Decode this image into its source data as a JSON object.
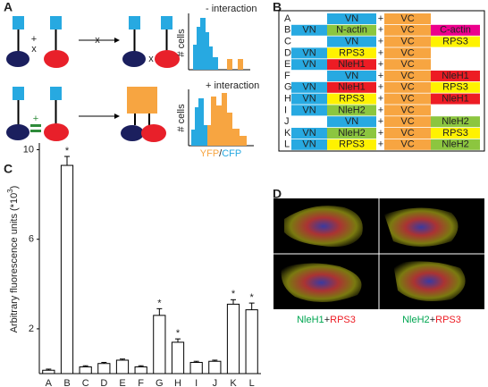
{
  "figure": {
    "panels": [
      "A",
      "B",
      "C",
      "D"
    ],
    "panel_a": {
      "minus_label": "- interaction",
      "plus_label": "+ interaction",
      "y_label": "# cells",
      "plus_sign": "+",
      "cross": "x",
      "x_label_yfp": "YFP",
      "x_label_sep": "/",
      "x_label_cfp": "CFP"
    },
    "panel_b": {
      "plus": "+",
      "colors": {
        "VN": "#27a9e1",
        "VC": "#f7a541",
        "N-actin": "#8cc63f",
        "C-actin": "#ec008c",
        "RPS3": "#fff200",
        "NleH1": "#ed1c24",
        "NleH2": "#8cc63f"
      },
      "rows": [
        {
          "label": "A",
          "cells": [
            null,
            "VN",
            "VC",
            null
          ]
        },
        {
          "label": "B",
          "cells": [
            "VN",
            "N-actin",
            "VC",
            "C-actin"
          ]
        },
        {
          "label": "C",
          "cells": [
            null,
            "VN",
            "VC",
            "RPS3"
          ]
        },
        {
          "label": "D",
          "cells": [
            "VN",
            "RPS3",
            "VC",
            null
          ]
        },
        {
          "label": "E",
          "cells": [
            "VN",
            "NleH1",
            "VC",
            null
          ]
        },
        {
          "label": "F",
          "cells": [
            null,
            "VN",
            "VC",
            "NleH1"
          ]
        },
        {
          "label": "G",
          "cells": [
            "VN",
            "NleH1",
            "VC",
            "RPS3"
          ]
        },
        {
          "label": "H",
          "cells": [
            "VN",
            "RPS3",
            "VC",
            "NleH1"
          ]
        },
        {
          "label": "I",
          "cells": [
            "VN",
            "NleH2",
            "VC",
            null
          ]
        },
        {
          "label": "J",
          "cells": [
            null,
            "VN",
            "VC",
            "NleH2"
          ]
        },
        {
          "label": "K",
          "cells": [
            "VN",
            "NleH2",
            "VC",
            "RPS3"
          ]
        },
        {
          "label": "L",
          "cells": [
            "VN",
            "RPS3",
            "VC",
            "NleH2"
          ]
        }
      ]
    },
    "panel_d": {
      "left_a": "NleH1",
      "left_plus": "+",
      "left_b": "RPS3",
      "right_a": "NleH2",
      "right_plus": "+",
      "right_b": "RPS3",
      "color_a": "#00a651",
      "color_b": "#ed1c24"
    }
  },
  "chart_data": {
    "type": "bar",
    "ylabel": "Arbitrary fluorescence units (*10",
    "ylabel_sup": "3",
    "ylabel_end": ")",
    "categories": [
      "A",
      "B",
      "C",
      "D",
      "E",
      "F",
      "G",
      "H",
      "I",
      "J",
      "K",
      "L"
    ],
    "values": [
      0.15,
      9.3,
      0.3,
      0.45,
      0.6,
      0.3,
      2.6,
      1.4,
      0.5,
      0.55,
      3.1,
      2.85
    ],
    "errors": [
      0.05,
      0.4,
      0.05,
      0.05,
      0.05,
      0.05,
      0.3,
      0.15,
      0.05,
      0.05,
      0.2,
      0.3
    ],
    "significance": [
      null,
      "*",
      null,
      null,
      null,
      null,
      "*",
      "*",
      null,
      null,
      "*",
      "*"
    ],
    "color": "#ffffff",
    "ylim": [
      0,
      10.3
    ],
    "yticks": [
      2,
      6,
      10
    ],
    "grid": false
  }
}
